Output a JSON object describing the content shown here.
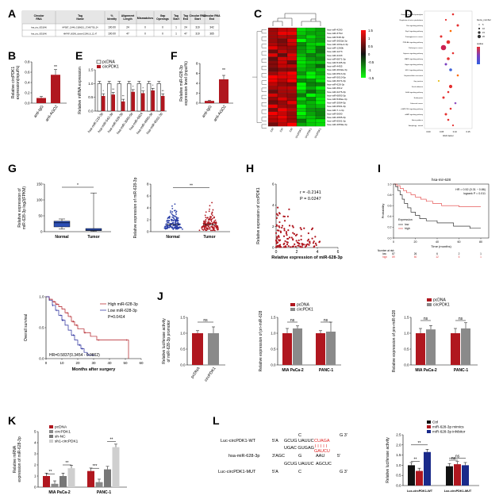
{
  "letters": {
    "A": "A",
    "B": "B",
    "C": "C",
    "D": "D",
    "E": "E",
    "F": "F",
    "G": "G",
    "H": "H",
    "I": "I",
    "J": "J",
    "K": "K",
    "L": "L"
  },
  "colors": {
    "red": "#b0171f",
    "black": "#111111",
    "gray": "#8a8a8a",
    "blue": "#23289a",
    "box": "#2c4fb5",
    "lightgray": "#cccccc"
  },
  "table_A": {
    "headers": [
      "Circular RNA",
      "Tag Name",
      "% Identity",
      "Alignment Length",
      "Mismatches",
      "Gap Openings",
      "Tag Start",
      "Tag End",
      "Circular RNA Start",
      "Circular RNA End"
    ],
    "rows": [
      [
        "hsa_circ_0051046",
        "HPSBT_12448_G18962/1_173467705_24",
        "100.00",
        "24",
        "0",
        "0",
        "1",
        "24",
        "319",
        "342"
      ],
      [
        "hsa_circ_0051046",
        "HHFKP_60396_cluster/13248_8_12_47",
        "100.00",
        "47",
        "0",
        "0",
        "1",
        "47",
        "319",
        "365"
      ]
    ]
  },
  "panel_B": {
    "chart_data": {
      "type": "bar",
      "categories": [
        "anti-IgG",
        "anti-AGO2"
      ],
      "values": [
        0.1,
        0.55
      ],
      "errors": [
        0.03,
        0.1
      ],
      "ylabel": "Relative circPDK1 expression(input%)",
      "ylim": [
        0,
        0.8
      ],
      "yticks": [
        0.0,
        0.2,
        0.4,
        0.6,
        0.8
      ],
      "sig": "**"
    }
  },
  "panel_E": {
    "chart_data": {
      "type": "bar",
      "ylabel": "Relative mRNA expression",
      "ylim": [
        0,
        1.5
      ],
      "yticks": [
        0.0,
        0.5,
        1.0,
        1.5
      ],
      "categories": [
        "hsa-miR-215-3p",
        "hsa-miR-542-3p",
        "hsa-miR-628-3p",
        "hsa-miR-3065-5p",
        "hsa-miR-6824",
        "hsa-miR-4665-3p",
        "hsa-miR-6501-3p"
      ],
      "series": [
        {
          "name": "pcDNA",
          "values": [
            1.0,
            1.0,
            1.0,
            1.0,
            1.0,
            1.0,
            1.0
          ]
        },
        {
          "name": "circPDK1",
          "values": [
            0.55,
            0.6,
            0.35,
            0.7,
            0.65,
            0.75,
            0.55
          ]
        }
      ],
      "sig": [
        "*",
        "**",
        "**",
        "*",
        "*",
        "*",
        "**"
      ]
    }
  },
  "panel_F": {
    "chart_data": {
      "type": "bar",
      "categories": [
        "anti-IgG",
        "anti-AGO2"
      ],
      "values": [
        0.45,
        4.8
      ],
      "errors": [
        0.1,
        0.8
      ],
      "ylabel": "Relative miR-628-3p expression level (input%)",
      "ylim": [
        0,
        8
      ],
      "yticks": [
        0,
        2,
        4,
        6,
        8
      ],
      "sig": "**"
    }
  },
  "panel_C": {
    "genes": [
      "hsa-miR-4290",
      "hsa-miR-376d",
      "hsa-miR-548-3p",
      "hsa-miR-3653a-3p",
      "hsa-miR-103a-2-3p",
      "hsa-miR-1260b",
      "hsa-miR-1273",
      "hsa-miR-4443",
      "hsa-miR-6871-3p",
      "hsa-miR-5195-3p",
      "hsa-miR-4455",
      "hsa-miR-4632a-3p",
      "hsa-miR-6513-3p",
      "hsa-miR-5010-5p",
      "hsa-miR-3074-3p",
      "hsa-miR-628-3p",
      "hsa-miR-3612",
      "hsa-miR-2276-3p",
      "hsa-miR-6893-3p",
      "hsa-miR-548as-3p",
      "hsa-miR-3064-5p",
      "hsa-miR-6501-3p",
      "hsa-miR-7-1-3p",
      "hsa-miR-5690",
      "hsa-miR-4665-3p",
      "hsa-miR-6501-3p",
      "hsa-miR-4659a-3p"
    ],
    "samples": [
      "Ctrl",
      "Ctrl",
      "Ctrl",
      "circPDK1",
      "circPDK1",
      "circPDK1"
    ],
    "scale": [
      "1.5",
      "1",
      "0.5",
      "0",
      "-0.5",
      "-1",
      "-1.5"
    ]
  },
  "panel_D": {
    "legend_title": "Gene_number",
    "legend_sizes": [
      "5",
      "10",
      "15",
      "20"
    ],
    "color_title": "qvalue",
    "xlabel": "Rich factor",
    "pathways": [
      "Ubiquitin mediated proteolysis",
      "Regulation of actin cytoskeleton",
      "Ras signaling pathway",
      "Rap1 signaling pathway",
      "Proteoglycans in cancer",
      "PI3K-Akt signaling pathway",
      "Pathways in cancer",
      "Oxytocin signaling pathway",
      "MAPK signaling pathway",
      "Hippo signaling pathway",
      "HIF-1 signaling pathway",
      "Hepatocellular carcinoma",
      "Gap junction",
      "Focal adhesion",
      "ErbB signaling pathway",
      "Endocytosis",
      "Colorectal cancer",
      "cGMP-PKG signaling pathway",
      "cAMP signaling pathway",
      "Axon guidance",
      "Autophagy - animal"
    ],
    "xticks": [
      "0.00",
      "0.05",
      "0.10",
      "0.15"
    ]
  },
  "panel_G_box": {
    "chart_data": {
      "type": "box",
      "categories": [
        "Normal",
        "Tumor"
      ],
      "ylabel": "Relative expression of miR-628-3p log2(FPKM)",
      "ylim": [
        0,
        150
      ],
      "yticks": [
        0,
        50,
        100,
        150
      ],
      "boxes": [
        {
          "q1": 15,
          "median": 28,
          "q3": 33,
          "min": 8,
          "max": 40
        },
        {
          "q1": 3,
          "median": 5,
          "q3": 10,
          "min": 1,
          "max": 122
        }
      ],
      "sig": "*"
    }
  },
  "panel_G_scatter": {
    "chart_data": {
      "type": "scatter",
      "categories": [
        "Normal",
        "Tumor"
      ],
      "ylabel": "Relative expression of miR-628-3p",
      "ylim": [
        0,
        8
      ],
      "yticks": [
        0,
        2,
        4,
        6,
        8
      ],
      "sig": "**"
    }
  },
  "panel_H": {
    "chart_data": {
      "type": "scatter",
      "xlabel": "Relative expression of miR-628-3p",
      "ylabel": "Relative expression of circPDK1",
      "xlim": [
        0,
        6
      ],
      "ylim": [
        0,
        6
      ],
      "xticks": [
        0,
        2,
        4,
        6
      ],
      "yticks": [
        0,
        2,
        4,
        6
      ],
      "r": "r = -0.2141",
      "p": "P = 0.0247"
    }
  },
  "panel_I": {
    "chart_data": {
      "type": "line",
      "title": "hsa-mir-628",
      "hr": "HR = 0.52 (0.31 − 0.86)",
      "logrank": "logrank P = 0.011",
      "ylabel": "Probability",
      "xlabel": "Time (months)",
      "yticks": [
        "0.0",
        "0.2",
        "0.4",
        "0.6",
        "0.8",
        "1.0"
      ],
      "xticks": [
        "0",
        "20",
        "40",
        "60",
        "80"
      ],
      "legend_title": "Expression",
      "series": [
        {
          "name": "low",
          "color": "#111111"
        },
        {
          "name": "high",
          "color": "#e23a3a"
        }
      ],
      "risk_label": "Number at risk",
      "risk_low": [
        "low",
        "87",
        "26",
        "6",
        "2",
        "1"
      ],
      "risk_high": [
        "high",
        "89",
        "50",
        "12",
        "5",
        "1"
      ]
    }
  },
  "panel_KM": {
    "chart_data": {
      "type": "line",
      "ylabel": "Overall survival",
      "xlabel": "Months after surgery",
      "ylim": [
        0,
        1
      ],
      "yticks": [
        "0.0",
        "0.5",
        "1.0"
      ],
      "xticks": [
        "0",
        "10",
        "20",
        "30",
        "40",
        "50",
        "60"
      ],
      "series": [
        {
          "name": "High miR-628-3p",
          "color": "#b0171f"
        },
        {
          "name": "Low miR-628-3p",
          "color": "#23289a"
        }
      ],
      "p": "P=0.0414",
      "hr": "HR=0.5837(0.3454 - 0.9862)"
    }
  },
  "panel_J1": {
    "chart_data": {
      "type": "bar",
      "categories": [
        "pcDNA",
        "circPDK1"
      ],
      "values": [
        1.0,
        1.0
      ],
      "errors": [
        0.08,
        0.2
      ],
      "ylabel": "Relative luciferase activity of miR-628-3p promotor",
      "ylim": [
        0,
        1.5
      ],
      "yticks": [
        0.0,
        0.5,
        1.0,
        1.5
      ],
      "sig": "ns"
    }
  },
  "panel_J2": {
    "chart_data": {
      "type": "bar",
      "categories": [
        "MIA PaCa-2",
        "PANC-1"
      ],
      "series": [
        {
          "name": "pcDNA",
          "values": [
            1.0,
            1.0
          ]
        },
        {
          "name": "circPDK1",
          "values": [
            1.15,
            1.05
          ]
        }
      ],
      "errors": [
        [
          0.15,
          0.08
        ],
        [
          0.08,
          0.3
        ]
      ],
      "ylabel": "Relative expression of pri-miR-628",
      "ylim": [
        0,
        1.5
      ],
      "yticks": [
        0.0,
        0.5,
        1.0,
        1.5
      ],
      "sig": [
        "ns",
        "ns"
      ]
    }
  },
  "panel_J3": {
    "chart_data": {
      "type": "bar",
      "categories": [
        "MIA PaCa-2",
        "PANC-1"
      ],
      "series": [
        {
          "name": "pcDNA",
          "values": [
            1.0,
            1.0
          ]
        },
        {
          "name": "circPDK1",
          "values": [
            1.12,
            1.15
          ]
        }
      ],
      "errors": [
        [
          0.15,
          0.12
        ],
        [
          0.15,
          0.18
        ]
      ],
      "ylabel": "Relative expression of pre-miR-628",
      "ylim": [
        0,
        1.5
      ],
      "yticks": [
        0.0,
        0.5,
        1.0,
        1.5
      ],
      "sig": [
        "ns",
        "ns"
      ]
    }
  },
  "panel_K": {
    "chart_data": {
      "type": "bar",
      "categories": [
        "MIA PaCa-2",
        "PANC-1"
      ],
      "series": [
        {
          "name": "pcDNA",
          "values": [
            1.0,
            1.45
          ]
        },
        {
          "name": "circPDK1",
          "values": [
            0.3,
            0.45
          ]
        },
        {
          "name": "sh-NC",
          "values": [
            1.0,
            1.6
          ]
        },
        {
          "name": "sh1-circPDK1",
          "values": [
            1.7,
            3.6
          ]
        }
      ],
      "ylabel": "Relative mRNA expression of miR-628-3p",
      "ylim": [
        0,
        5
      ],
      "yticks": [
        0,
        1,
        2,
        3,
        4,
        5
      ],
      "sig": [
        "**",
        "**",
        "***",
        "**"
      ]
    }
  },
  "panel_L_seq": {
    "wt_label": "Luc-circPDK1-WT",
    "wt_5": "5'A",
    "wt_c": "C",
    "wt_mid": "GCUG UAUUC",
    "wt_red": "CUAGA",
    "wt_3": "G 3'",
    "mid_row": "UGAC GUGAG",
    "mir_red": "GAUCU",
    "mir_label": "hsa-miR-628-3p",
    "mir_3": "3'AGC",
    "mir_g": "G",
    "mir_aau": "AAU",
    "mir_5": "5'",
    "mut_row1": "GCUG UAUUC",
    "mut_row1b": "AGCUC",
    "mut_label": "Luc-circPDK1-MUT",
    "mut_5": "5'A",
    "mut_c": "C",
    "mut_3": "G 3'"
  },
  "panel_L_bar": {
    "chart_data": {
      "type": "bar",
      "categories": [
        "Luc-circPDK1-WT",
        "Luc-circPDK1-MUT"
      ],
      "series": [
        {
          "name": "Ctrl",
          "values": [
            1.0,
            0.95
          ]
        },
        {
          "name": "miR-628-3p mimics",
          "values": [
            0.72,
            1.05
          ]
        },
        {
          "name": "miR-628-3p inhibitor",
          "values": [
            1.65,
            1.0
          ]
        }
      ],
      "ylabel": "Relative luciferase activity",
      "ylim": [
        0,
        2.5
      ],
      "yticks": [
        0.0,
        0.5,
        1.0,
        1.5,
        2.0,
        2.5
      ],
      "sig": [
        "**",
        "**",
        "ns",
        "ns"
      ]
    }
  }
}
